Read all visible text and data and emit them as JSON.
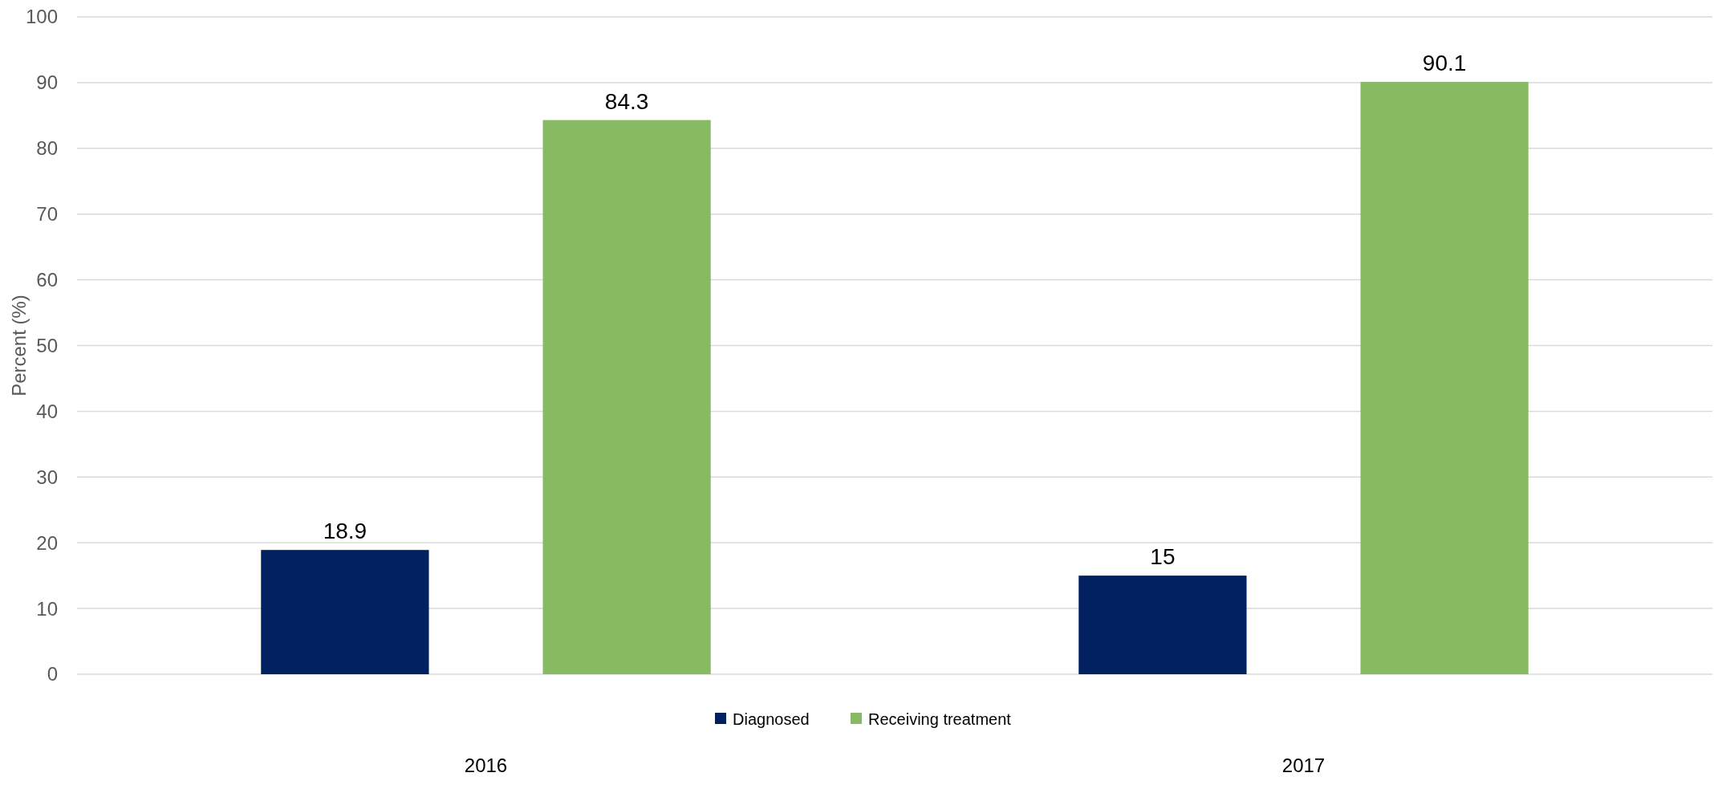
{
  "chart_data": {
    "type": "bar",
    "ylabel": "Percent (%)",
    "categories": [
      "2016",
      "2017"
    ],
    "series": [
      {
        "name": "Diagnosed",
        "color": "#002060",
        "values": [
          18.9,
          15
        ]
      },
      {
        "name": "Receiving treatment",
        "color": "#87ba63",
        "values": [
          84.3,
          90.1
        ]
      }
    ],
    "ylim": [
      0,
      100
    ],
    "yticks": [
      0,
      10,
      20,
      30,
      40,
      50,
      60,
      70,
      80,
      90,
      100
    ],
    "grid": "y",
    "legend": "bottom",
    "data_labels": true
  }
}
